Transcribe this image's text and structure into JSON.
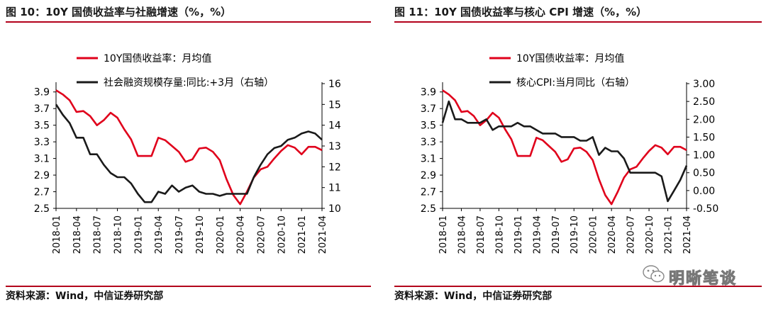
{
  "charts": [
    {
      "title": "图 10：10Y 国债收益率与社融增速（%，%）",
      "source": "资料来源：Wind，中信证券研究部"
    },
    {
      "title": "图 11：10Y 国债收益率与核心 CPI 增速（%，%）",
      "source": "资料来源：Wind，中信证券研究部"
    }
  ],
  "watermark": {
    "text": "明晰笔谈",
    "icon": "wechat-icon"
  },
  "colors": {
    "red": "#e0001b",
    "black": "#1a1a1a",
    "rule": "#b3001b"
  },
  "chart_data": [
    {
      "type": "line",
      "title": "",
      "x": [
        "2018-01",
        "2018-02",
        "2018-03",
        "2018-04",
        "2018-05",
        "2018-06",
        "2018-07",
        "2018-08",
        "2018-09",
        "2018-10",
        "2018-11",
        "2018-12",
        "2019-01",
        "2019-02",
        "2019-03",
        "2019-04",
        "2019-05",
        "2019-06",
        "2019-07",
        "2019-08",
        "2019-09",
        "2019-10",
        "2019-11",
        "2019-12",
        "2020-01",
        "2020-02",
        "2020-03",
        "2020-04",
        "2020-05",
        "2020-06",
        "2020-07",
        "2020-08",
        "2020-09",
        "2020-10",
        "2020-11",
        "2020-12",
        "2021-01",
        "2021-02",
        "2021-03",
        "2021-04"
      ],
      "xticks": [
        "2018-01",
        "2018-04",
        "2018-07",
        "2018-10",
        "2019-01",
        "2019-04",
        "2019-07",
        "2019-10",
        "2020-01",
        "2020-04",
        "2020-07",
        "2020-10",
        "2021-01",
        "2021-04"
      ],
      "y_left": {
        "ticks": [
          "2.5",
          "2.7",
          "2.9",
          "3.1",
          "3.3",
          "3.5",
          "3.7",
          "3.9"
        ],
        "range": [
          2.5,
          4.0
        ]
      },
      "y_right": {
        "ticks": [
          "10",
          "11",
          "12",
          "13",
          "14",
          "15",
          "16"
        ],
        "range": [
          10,
          16
        ]
      },
      "series": [
        {
          "name": "10Y国债收益率：月均值",
          "axis": "left",
          "color": "#e0001b",
          "values": [
            3.92,
            3.87,
            3.8,
            3.66,
            3.67,
            3.61,
            3.5,
            3.56,
            3.65,
            3.59,
            3.45,
            3.33,
            3.13,
            3.13,
            3.13,
            3.35,
            3.32,
            3.25,
            3.18,
            3.06,
            3.09,
            3.22,
            3.23,
            3.18,
            3.08,
            2.85,
            2.66,
            2.55,
            2.7,
            2.87,
            2.97,
            3.0,
            3.1,
            3.19,
            3.26,
            3.23,
            3.15,
            3.24,
            3.24,
            3.2
          ]
        },
        {
          "name": "社会融资规模存量:同比:+3月（右轴）",
          "axis": "right",
          "color": "#1a1a1a",
          "values": [
            15.0,
            14.5,
            14.1,
            13.4,
            13.4,
            12.6,
            12.6,
            12.1,
            11.7,
            11.5,
            11.5,
            11.2,
            10.7,
            10.3,
            10.3,
            10.8,
            10.7,
            11.1,
            10.8,
            11.0,
            11.1,
            10.8,
            10.7,
            10.7,
            10.6,
            10.7,
            10.7,
            10.7,
            10.7,
            11.5,
            12.1,
            12.6,
            12.9,
            13.0,
            13.3,
            13.4,
            13.6,
            13.7,
            13.6,
            13.3
          ]
        }
      ]
    },
    {
      "type": "line",
      "title": "",
      "x": [
        "2018-01",
        "2018-02",
        "2018-03",
        "2018-04",
        "2018-05",
        "2018-06",
        "2018-07",
        "2018-08",
        "2018-09",
        "2018-10",
        "2018-11",
        "2018-12",
        "2019-01",
        "2019-02",
        "2019-03",
        "2019-04",
        "2019-05",
        "2019-06",
        "2019-07",
        "2019-08",
        "2019-09",
        "2019-10",
        "2019-11",
        "2019-12",
        "2020-01",
        "2020-02",
        "2020-03",
        "2020-04",
        "2020-05",
        "2020-06",
        "2020-07",
        "2020-08",
        "2020-09",
        "2020-10",
        "2020-11",
        "2020-12",
        "2021-01",
        "2021-02",
        "2021-03",
        "2021-04"
      ],
      "xticks": [
        "2018-01",
        "2018-04",
        "2018-07",
        "2018-10",
        "2019-01",
        "2019-04",
        "2019-07",
        "2019-10",
        "2020-01",
        "2020-04",
        "2020-07",
        "2020-10",
        "2021-01",
        "2021-04"
      ],
      "y_left": {
        "ticks": [
          "2.5",
          "2.7",
          "2.9",
          "3.1",
          "3.3",
          "3.5",
          "3.7",
          "3.9"
        ],
        "range": [
          2.5,
          4.0
        ]
      },
      "y_right": {
        "ticks": [
          "-0.50",
          "0.00",
          "0.50",
          "1.00",
          "1.50",
          "2.00",
          "2.50",
          "3.00"
        ],
        "range": [
          -0.5,
          3.0
        ]
      },
      "series": [
        {
          "name": "10Y国债收益率：月均值",
          "axis": "left",
          "color": "#e0001b",
          "values": [
            3.92,
            3.87,
            3.8,
            3.66,
            3.67,
            3.61,
            3.5,
            3.56,
            3.65,
            3.59,
            3.45,
            3.33,
            3.13,
            3.13,
            3.13,
            3.35,
            3.32,
            3.25,
            3.18,
            3.06,
            3.09,
            3.22,
            3.23,
            3.18,
            3.08,
            2.85,
            2.66,
            2.55,
            2.7,
            2.87,
            2.97,
            3.0,
            3.1,
            3.19,
            3.26,
            3.23,
            3.15,
            3.24,
            3.24,
            3.2
          ]
        },
        {
          "name": "核心CPI:当月同比（右轴）",
          "axis": "right",
          "color": "#1a1a1a",
          "values": [
            1.9,
            2.5,
            2.0,
            2.0,
            1.9,
            1.9,
            1.9,
            2.0,
            1.7,
            1.8,
            1.8,
            1.8,
            1.9,
            1.8,
            1.8,
            1.7,
            1.6,
            1.6,
            1.6,
            1.5,
            1.5,
            1.5,
            1.4,
            1.4,
            1.5,
            1.0,
            1.2,
            1.1,
            1.1,
            0.9,
            0.5,
            0.5,
            0.5,
            0.5,
            0.5,
            0.4,
            -0.3,
            0.0,
            0.3,
            0.7
          ]
        }
      ]
    }
  ]
}
